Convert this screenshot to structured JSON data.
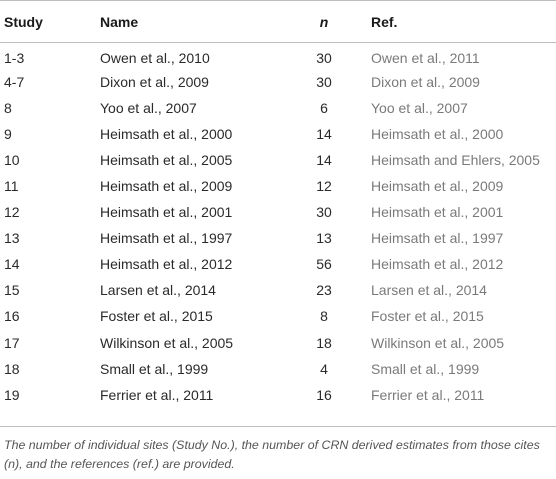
{
  "table": {
    "headers": {
      "study": "Study",
      "name": "Name",
      "n": "n",
      "ref": "Ref."
    },
    "rows": [
      {
        "study": "1-3",
        "name": "Owen et al., 2010",
        "n": "30",
        "ref": "Owen et al., 2011"
      },
      {
        "study": "4-7",
        "name": "Dixon et al., 2009",
        "n": "30",
        "ref": "Dixon et al., 2009"
      },
      {
        "study": "8",
        "name": "Yoo et al., 2007",
        "n": "6",
        "ref": "Yoo et al., 2007"
      },
      {
        "study": "9",
        "name": "Heimsath et al., 2000",
        "n": "14",
        "ref": "Heimsath et al., 2000"
      },
      {
        "study": "10",
        "name": "Heimsath et al., 2005",
        "n": "14",
        "ref": "Heimsath and Ehlers, 2005"
      },
      {
        "study": "11",
        "name": "Heimsath et al., 2009",
        "n": "12",
        "ref": "Heimsath et al., 2009"
      },
      {
        "study": "12",
        "name": "Heimsath et al., 2001",
        "n": "30",
        "ref": "Heimsath et al., 2001"
      },
      {
        "study": "13",
        "name": "Heimsath et al., 1997",
        "n": "13",
        "ref": "Heimsath et al., 1997"
      },
      {
        "study": "14",
        "name": "Heimsath et al., 2012",
        "n": "56",
        "ref": "Heimsath et al., 2012"
      },
      {
        "study": "15",
        "name": "Larsen et al., 2014",
        "n": "23",
        "ref": "Larsen et al., 2014"
      },
      {
        "study": "16",
        "name": "Foster et al., 2015",
        "n": "8",
        "ref": "Foster et al., 2015"
      },
      {
        "study": "17",
        "name": "Wilkinson et al., 2005",
        "n": "18",
        "ref": "Wilkinson et al., 2005"
      },
      {
        "study": "18",
        "name": "Small et al., 1999",
        "n": "4",
        "ref": "Small et al., 1999"
      },
      {
        "study": "19",
        "name": "Ferrier et al., 2011",
        "n": "16",
        "ref": "Ferrier et al., 2011"
      }
    ]
  },
  "footnote": "The number of individual sites (Study No.), the number of CRN derived estimates from those cites (n), and the references (ref.) are provided."
}
